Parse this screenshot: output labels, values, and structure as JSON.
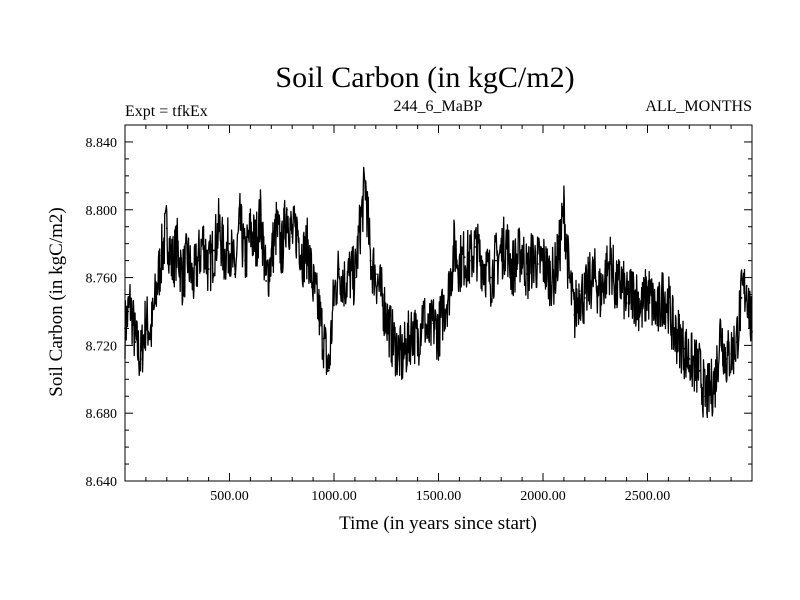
{
  "chart_data": {
    "type": "line",
    "title": "Soil Carbon (in kgC/m2)",
    "header_left": "Expt = tfkEx",
    "header_center": "244_6_MaBP",
    "header_right": "ALL_MONTHS",
    "xlabel": "Time (in years since start)",
    "ylabel": "Soil Carbon (in kgC/m2)",
    "xlim": [
      0,
      3000
    ],
    "ylim": [
      8.64,
      8.85
    ],
    "x_ticks": [
      500,
      1000,
      1500,
      2000,
      2500
    ],
    "x_tick_labels": [
      "500.00",
      "1000.00",
      "1500.00",
      "2000.00",
      "2500.00"
    ],
    "y_ticks": [
      8.64,
      8.68,
      8.72,
      8.76,
      8.8,
      8.84
    ],
    "y_tick_labels": [
      "8.640",
      "8.680",
      "8.720",
      "8.760",
      "8.800",
      "8.840"
    ],
    "grid": false,
    "series": [
      {
        "color": "#000000",
        "x": [
          0,
          25,
          50,
          75,
          100,
          125,
          150,
          175,
          200,
          225,
          250,
          275,
          300,
          325,
          350,
          375,
          400,
          425,
          450,
          475,
          500,
          525,
          550,
          575,
          600,
          625,
          650,
          675,
          700,
          725,
          750,
          775,
          800,
          825,
          850,
          875,
          900,
          925,
          950,
          975,
          1000,
          1025,
          1050,
          1075,
          1100,
          1125,
          1150,
          1175,
          1200,
          1225,
          1250,
          1275,
          1300,
          1325,
          1350,
          1375,
          1400,
          1425,
          1450,
          1475,
          1500,
          1525,
          1550,
          1575,
          1600,
          1625,
          1650,
          1675,
          1700,
          1725,
          1750,
          1775,
          1800,
          1825,
          1850,
          1875,
          1900,
          1925,
          1950,
          1975,
          2000,
          2025,
          2050,
          2075,
          2100,
          2125,
          2150,
          2175,
          2200,
          2225,
          2250,
          2275,
          2300,
          2325,
          2350,
          2375,
          2400,
          2425,
          2450,
          2475,
          2500,
          2525,
          2550,
          2575,
          2600,
          2625,
          2650,
          2675,
          2700,
          2725,
          2750,
          2775,
          2800,
          2825,
          2850,
          2875,
          2900,
          2925,
          2950,
          2975,
          3000
        ],
        "y": [
          8.73,
          8.745,
          8.722,
          8.712,
          8.735,
          8.728,
          8.752,
          8.773,
          8.789,
          8.768,
          8.778,
          8.76,
          8.772,
          8.757,
          8.77,
          8.782,
          8.765,
          8.776,
          8.79,
          8.772,
          8.78,
          8.762,
          8.792,
          8.77,
          8.787,
          8.78,
          8.797,
          8.758,
          8.772,
          8.79,
          8.775,
          8.8,
          8.784,
          8.788,
          8.772,
          8.778,
          8.755,
          8.742,
          8.724,
          8.705,
          8.75,
          8.765,
          8.757,
          8.762,
          8.76,
          8.79,
          8.816,
          8.77,
          8.762,
          8.75,
          8.738,
          8.725,
          8.718,
          8.712,
          8.72,
          8.73,
          8.722,
          8.74,
          8.725,
          8.733,
          8.728,
          8.742,
          8.752,
          8.778,
          8.768,
          8.772,
          8.77,
          8.778,
          8.772,
          8.766,
          8.76,
          8.77,
          8.775,
          8.782,
          8.765,
          8.77,
          8.776,
          8.762,
          8.772,
          8.768,
          8.77,
          8.762,
          8.76,
          8.773,
          8.8,
          8.76,
          8.738,
          8.752,
          8.748,
          8.758,
          8.76,
          8.75,
          8.762,
          8.77,
          8.752,
          8.758,
          8.745,
          8.752,
          8.748,
          8.742,
          8.752,
          8.744,
          8.738,
          8.75,
          8.745,
          8.728,
          8.725,
          8.718,
          8.712,
          8.708,
          8.705,
          8.69,
          8.693,
          8.7,
          8.73,
          8.712,
          8.715,
          8.722,
          8.748,
          8.755,
          8.728
        ]
      }
    ]
  }
}
